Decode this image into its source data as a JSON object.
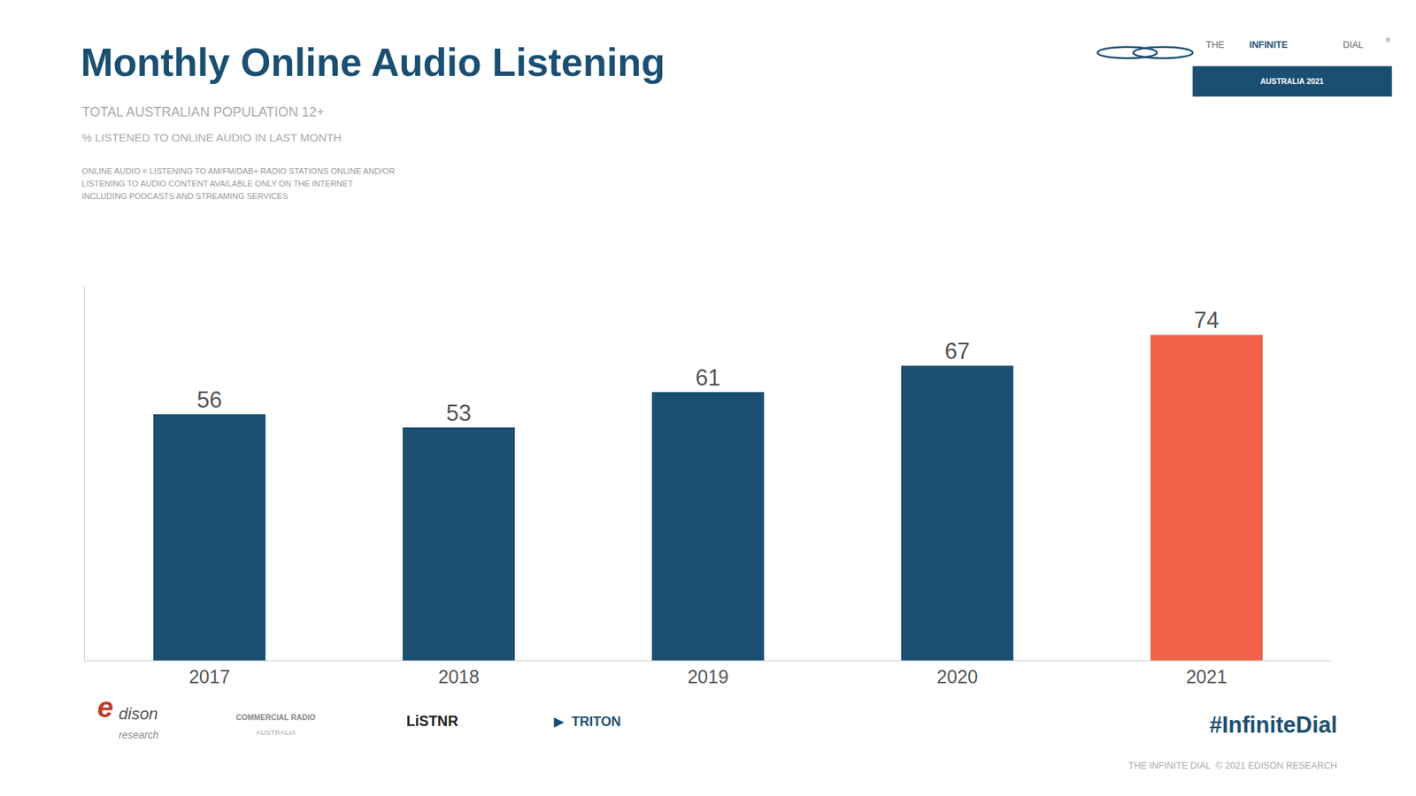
{
  "chart_data": {
    "type": "bar",
    "title": "Monthly Online Audio Listening",
    "subtitle": [
      "TOTAL AUSTRALIAN POPULATION 12+",
      "% LISTENED TO ONLINE AUDIO IN LAST MONTH"
    ],
    "annotations": [
      "ONLINE AUDIO = LISTENING TO AM/FM/DAB+ RADIO STATIONS ONLINE AND/OR",
      "LISTENING TO AUDIO CONTENT AVAILABLE ONLY ON THE INTERNET",
      "INCLUDING PODCASTS AND STREAMING SERVICES",
      "#InfiniteDial",
      "THE INFINITE DIAL  © 2021 EDISON RESEARCH",
      "THE",
      "INFINITE",
      "DIAL",
      "®",
      "AUSTRALIA 2021",
      "e",
      "dison",
      "research",
      "COMMERCIAL RADIO",
      "AUSTRALIA",
      "LiSTNR",
      "▶  TRITON"
    ],
    "categories": [
      "2017",
      "2018",
      "2019",
      "2020",
      "2021"
    ],
    "values": [
      56,
      53,
      61,
      67,
      74
    ],
    "colors": [
      "#1b4f72",
      "#1b4f72",
      "#1b4f72",
      "#1b4f72",
      "#f0624a"
    ],
    "ylim": [
      0,
      85
    ],
    "yticks": [],
    "grid": false,
    "data_labels": true,
    "tick_labels": "x"
  }
}
